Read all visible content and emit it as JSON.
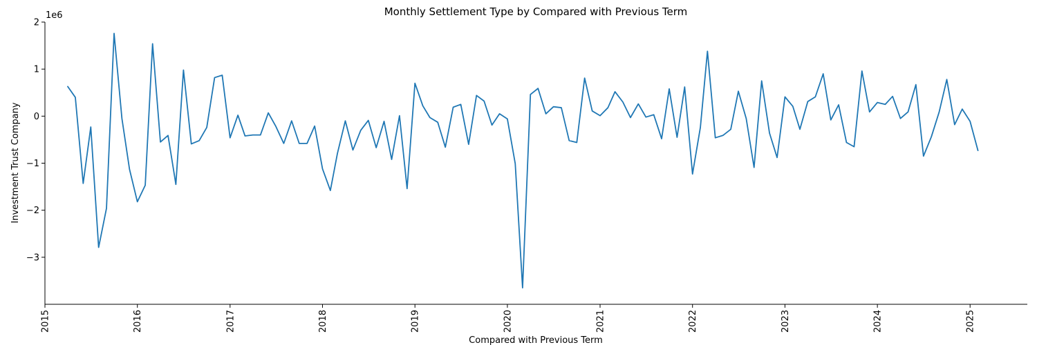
{
  "chart_data": {
    "type": "line",
    "title": "Monthly Settlement Type by Compared with Previous Term",
    "xlabel": "Compared with Previous Term",
    "ylabel": "Investment Trust Company",
    "y_offset_label": "1e6",
    "y_scale": 1000000,
    "xlim": [
      "2015-01-01",
      "2025-08-15"
    ],
    "ylim": [
      -4000000,
      2000000
    ],
    "x_ticks": [
      "2015",
      "2016",
      "2017",
      "2018",
      "2019",
      "2020",
      "2021",
      "2022",
      "2023",
      "2024",
      "2025"
    ],
    "y_ticks": [
      {
        "value": -3000000,
        "label": "−3"
      },
      {
        "value": -2000000,
        "label": "−2"
      },
      {
        "value": -1000000,
        "label": "−1"
      },
      {
        "value": 0,
        "label": "0"
      },
      {
        "value": 1000000,
        "label": "1"
      },
      {
        "value": 2000000,
        "label": "2"
      }
    ],
    "grid": false,
    "color": "#1f77b4",
    "series": [
      {
        "name": "",
        "x": [
          "2015-04",
          "2015-05",
          "2015-06",
          "2015-07",
          "2015-08",
          "2015-09",
          "2015-10",
          "2015-11",
          "2015-12",
          "2016-01",
          "2016-02",
          "2016-03",
          "2016-04",
          "2016-05",
          "2016-06",
          "2016-07",
          "2016-08",
          "2016-09",
          "2016-10",
          "2016-11",
          "2016-12",
          "2017-01",
          "2017-02",
          "2017-03",
          "2017-04",
          "2017-05",
          "2017-06",
          "2017-07",
          "2017-08",
          "2017-09",
          "2017-10",
          "2017-11",
          "2017-12",
          "2018-01",
          "2018-02",
          "2018-03",
          "2018-04",
          "2018-05",
          "2018-06",
          "2018-07",
          "2018-08",
          "2018-09",
          "2018-10",
          "2018-11",
          "2018-12",
          "2019-01",
          "2019-02",
          "2019-03",
          "2019-04",
          "2019-05",
          "2019-06",
          "2019-07",
          "2019-08",
          "2019-09",
          "2019-10",
          "2019-11",
          "2019-12",
          "2020-01",
          "2020-02",
          "2020-03",
          "2020-04",
          "2020-05",
          "2020-06",
          "2020-07",
          "2020-08",
          "2020-09",
          "2020-10",
          "2020-11",
          "2020-12",
          "2021-01",
          "2021-02",
          "2021-03",
          "2021-04",
          "2021-05",
          "2021-06",
          "2021-07",
          "2021-08",
          "2021-09",
          "2021-10",
          "2021-11",
          "2021-12",
          "2022-01",
          "2022-02",
          "2022-03",
          "2022-04",
          "2022-05",
          "2022-06",
          "2022-07",
          "2022-08",
          "2022-09",
          "2022-10",
          "2022-11",
          "2022-12",
          "2023-01",
          "2023-02",
          "2023-03",
          "2023-04",
          "2023-05",
          "2023-06",
          "2023-07",
          "2023-08",
          "2023-09",
          "2023-10",
          "2023-11",
          "2023-12",
          "2024-01",
          "2024-02",
          "2024-03",
          "2024-04",
          "2024-05",
          "2024-06",
          "2024-07",
          "2024-08",
          "2024-09",
          "2024-10",
          "2024-11",
          "2024-12",
          "2025-01",
          "2025-02"
        ],
        "values": [
          630000,
          400000,
          -1430000,
          -230000,
          -2790000,
          -1960000,
          1760000,
          -50000,
          -1130000,
          -1820000,
          -1470000,
          1540000,
          -550000,
          -410000,
          -1450000,
          980000,
          -590000,
          -520000,
          -240000,
          820000,
          870000,
          -460000,
          20000,
          -420000,
          -400000,
          -400000,
          70000,
          -220000,
          -580000,
          -100000,
          -580000,
          -580000,
          -210000,
          -1120000,
          -1580000,
          -790000,
          -100000,
          -720000,
          -300000,
          -90000,
          -670000,
          -110000,
          -920000,
          10000,
          -1540000,
          700000,
          220000,
          -30000,
          -130000,
          -660000,
          190000,
          250000,
          -600000,
          440000,
          320000,
          -190000,
          50000,
          -60000,
          -1010000,
          -3650000,
          460000,
          590000,
          50000,
          200000,
          180000,
          -520000,
          -560000,
          810000,
          110000,
          10000,
          180000,
          520000,
          300000,
          -30000,
          260000,
          -20000,
          30000,
          -480000,
          580000,
          -450000,
          620000,
          -1230000,
          -240000,
          1380000,
          -460000,
          -410000,
          -280000,
          530000,
          -50000,
          -1090000,
          750000,
          -360000,
          -880000,
          410000,
          210000,
          -280000,
          310000,
          410000,
          900000,
          -80000,
          240000,
          -560000,
          -650000,
          960000,
          90000,
          290000,
          250000,
          420000,
          -50000,
          90000,
          670000,
          -850000,
          -440000,
          90000,
          780000,
          -180000,
          150000,
          -110000,
          -730000
        ]
      }
    ]
  }
}
